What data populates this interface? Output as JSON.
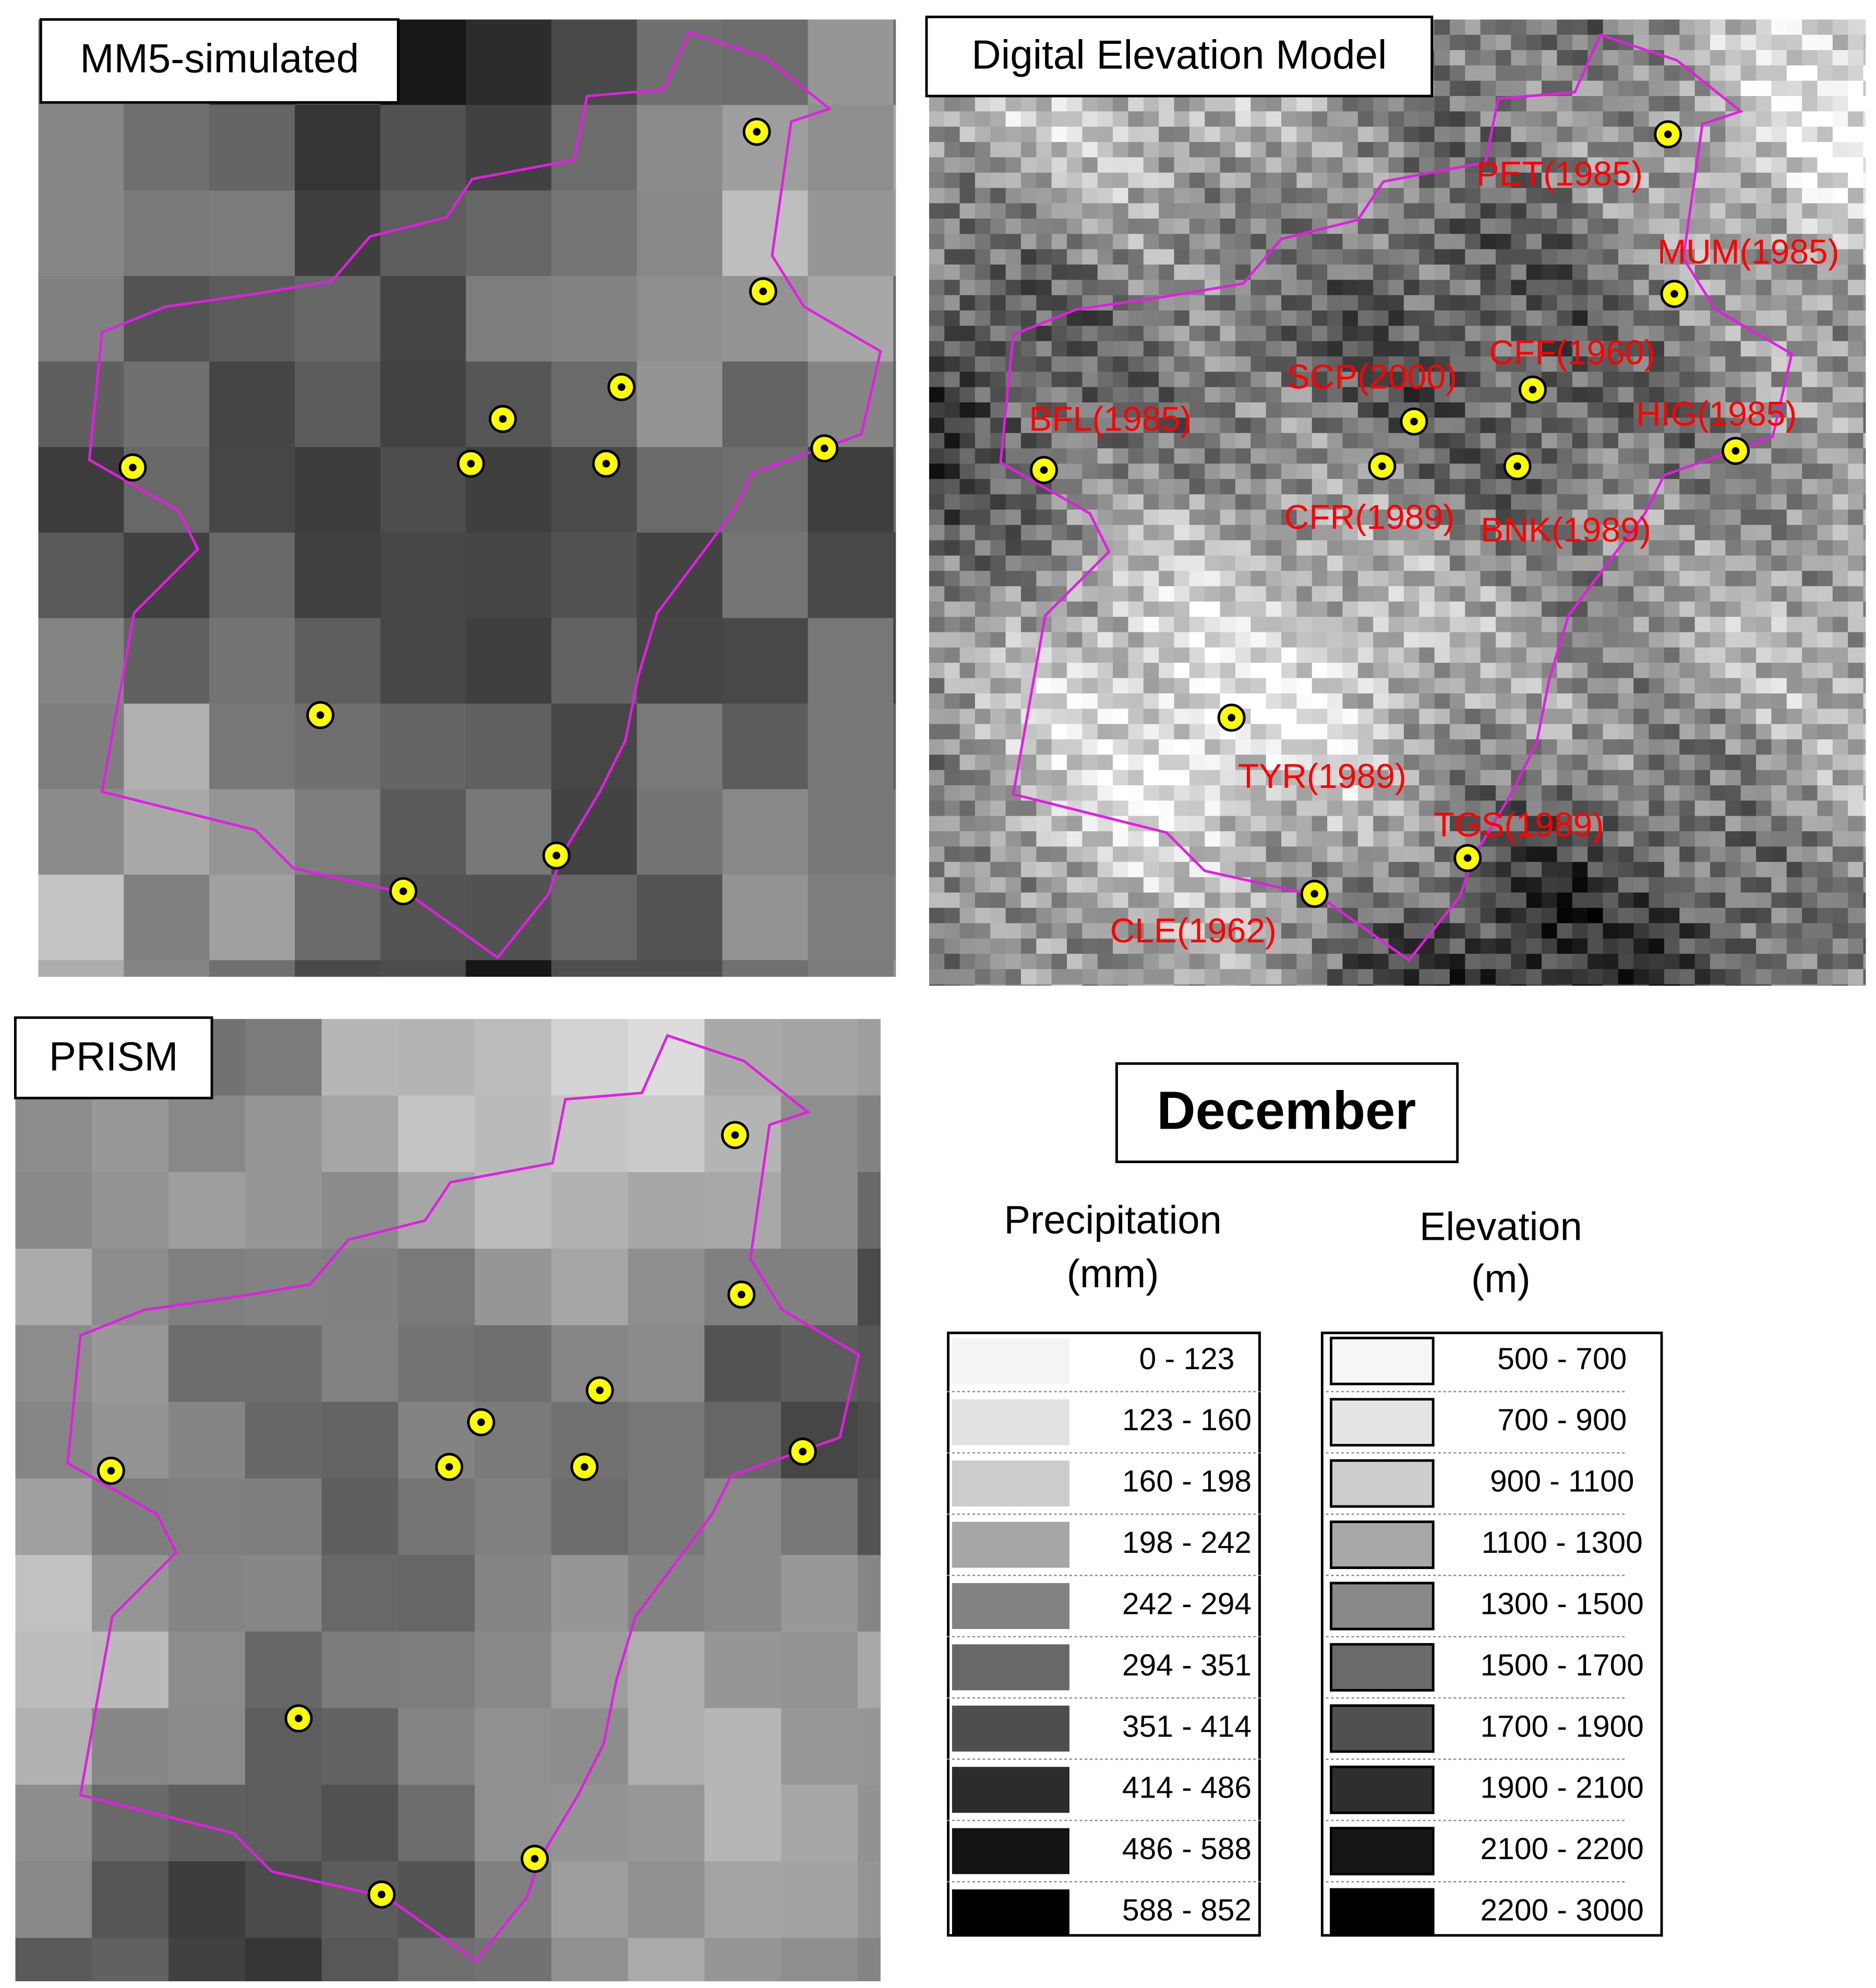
{
  "panels": [
    {
      "label": "MM5-simulated"
    },
    {
      "label": "Digital Elevation Model"
    },
    {
      "label": "PRISM"
    }
  ],
  "stations": [
    "PET(1985)",
    "MUM(1985)",
    "CFF(1960)",
    "SCP(2000)",
    "CFR(1989)",
    "BNK(1989)",
    "HIG(1985)",
    "BFL(1985)",
    "TYR(1989)",
    "TGS(1989)",
    "CLE(1962)"
  ],
  "legend": {
    "title": "December",
    "precipitation": {
      "title": "Precipitation",
      "unit": "(mm)",
      "classes": [
        {
          "label": "0 - 123",
          "color": "#f4f4f4"
        },
        {
          "label": "123 - 160",
          "color": "#e2e2e2"
        },
        {
          "label": "160 - 198",
          "color": "#cccccc"
        },
        {
          "label": "198 - 242",
          "color": "#a6a6a6"
        },
        {
          "label": "242 - 294",
          "color": "#828282"
        },
        {
          "label": "294 - 351",
          "color": "#686868"
        },
        {
          "label": "351 - 414",
          "color": "#4e4e4e"
        },
        {
          "label": "414 - 486",
          "color": "#2c2c2c"
        },
        {
          "label": "486 - 588",
          "color": "#141414"
        },
        {
          "label": "588 - 852",
          "color": "#000000"
        }
      ]
    },
    "elevation": {
      "title": "Elevation",
      "unit": "(m)",
      "classes": [
        {
          "label": "500 - 700",
          "color": "#f6f6f6"
        },
        {
          "label": "700 - 900",
          "color": "#e4e4e4"
        },
        {
          "label": "900 - 1100",
          "color": "#cdcdcd"
        },
        {
          "label": "1100 - 1300",
          "color": "#a8a8a8"
        },
        {
          "label": "1300 - 1500",
          "color": "#888888"
        },
        {
          "label": "1500 - 1700",
          "color": "#6a6a6a"
        },
        {
          "label": "1700 - 1900",
          "color": "#505050"
        },
        {
          "label": "1900 - 2100",
          "color": "#2e2e2e"
        },
        {
          "label": "2100 - 2200",
          "color": "#151515"
        },
        {
          "label": "2200 - 3000",
          "color": "#000000"
        }
      ]
    }
  }
}
